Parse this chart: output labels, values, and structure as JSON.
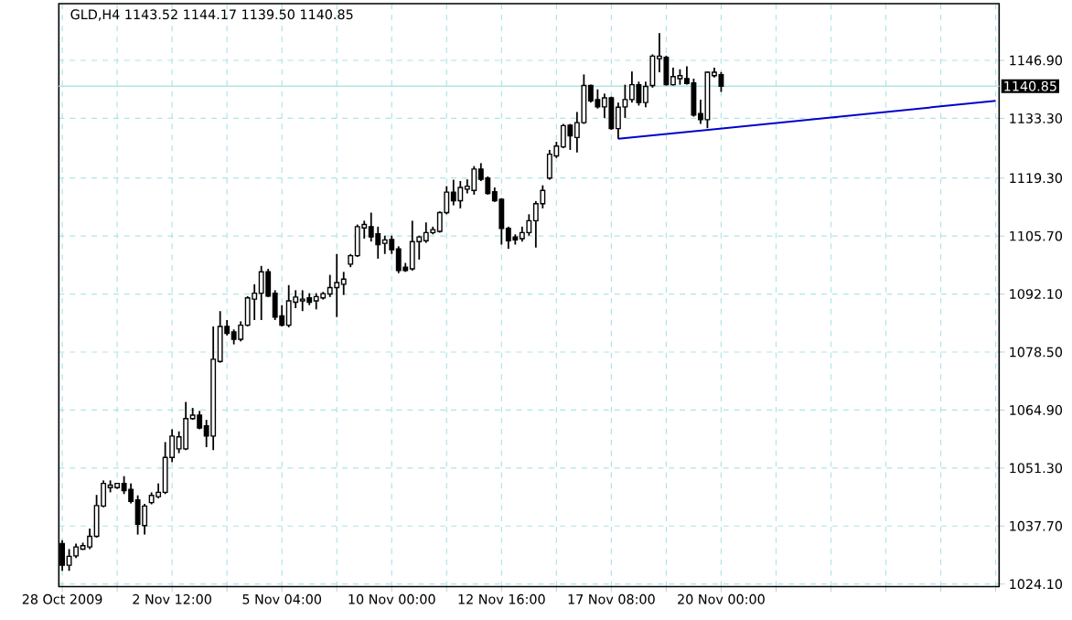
{
  "chart_data": {
    "type": "candlestick",
    "title": "GLD,H4  1143.52 1144.17 1139.50 1140.85",
    "categories": [
      "28 Oct 2009",
      null,
      null,
      null,
      null,
      null,
      null,
      null,
      null,
      null,
      null,
      null,
      null,
      null,
      null,
      null,
      "2 Nov 12:00",
      null,
      null,
      null,
      null,
      null,
      null,
      null,
      null,
      null,
      null,
      null,
      null,
      null,
      null,
      null,
      "5 Nov 04:00",
      null,
      null,
      null,
      null,
      null,
      null,
      null,
      null,
      null,
      null,
      null,
      null,
      null,
      null,
      null,
      "10 Nov 00:00",
      null,
      null,
      null,
      null,
      null,
      null,
      null,
      null,
      null,
      null,
      null,
      null,
      null,
      null,
      null,
      "12 Nov 16:00",
      null,
      null,
      null,
      null,
      null,
      null,
      null,
      null,
      null,
      null,
      null,
      null,
      null,
      null,
      null,
      "17 Nov 08:00",
      null,
      null,
      null,
      null,
      null,
      null,
      null,
      null,
      null,
      null,
      null,
      null,
      null,
      null,
      null,
      "20 Nov 00:00",
      null,
      null,
      null,
      null,
      null,
      null,
      null,
      null,
      null,
      null,
      null,
      null,
      null,
      null,
      null,
      null,
      null,
      null,
      null,
      null,
      null,
      null,
      null,
      null,
      null,
      null,
      null,
      null,
      null,
      null,
      null,
      null,
      null,
      null,
      null,
      null,
      null,
      null,
      null,
      null
    ],
    "ohlc": [
      [
        1033.6,
        1034.4,
        1027.2,
        1028.5
      ],
      [
        1028.5,
        1032.3,
        1027.2,
        1030.6
      ],
      [
        1030.7,
        1033.6,
        1030.2,
        1032.8
      ],
      [
        1032.3,
        1033.8,
        1032.1,
        1033.1
      ],
      [
        1032.8,
        1037.1,
        1032.3,
        1035.3
      ],
      [
        1035.3,
        1045.0,
        1035.0,
        1042.5
      ],
      [
        1042.4,
        1048.4,
        1042.1,
        1047.7
      ],
      [
        1046.7,
        1048.4,
        1045.6,
        1047.3
      ],
      [
        1046.7,
        1047.7,
        1046.4,
        1047.7
      ],
      [
        1047.7,
        1049.4,
        1045.2,
        1046.0
      ],
      [
        1046.3,
        1047.7,
        1043.0,
        1043.5
      ],
      [
        1043.8,
        1044.9,
        1035.7,
        1038.1
      ],
      [
        1037.8,
        1042.9,
        1035.7,
        1042.4
      ],
      [
        1043.2,
        1045.6,
        1042.8,
        1044.9
      ],
      [
        1044.6,
        1047.7,
        1044.2,
        1045.6
      ],
      [
        1045.6,
        1057.4,
        1045.2,
        1053.8
      ],
      [
        1053.8,
        1060.4,
        1052.7,
        1058.8
      ],
      [
        1055.8,
        1059.9,
        1054.8,
        1058.6
      ],
      [
        1055.8,
        1066.8,
        1055.5,
        1062.9
      ],
      [
        1062.9,
        1065.4,
        1062.6,
        1063.7
      ],
      [
        1063.7,
        1064.7,
        1060.4,
        1060.7
      ],
      [
        1061.2,
        1062.6,
        1056.2,
        1058.8
      ],
      [
        1058.8,
        1084.5,
        1055.5,
        1076.8
      ],
      [
        1076.3,
        1088.1,
        1076.0,
        1084.5
      ],
      [
        1084.5,
        1086.0,
        1082.4,
        1082.9
      ],
      [
        1083.2,
        1083.8,
        1080.3,
        1081.5
      ],
      [
        1081.5,
        1085.7,
        1081.0,
        1084.8
      ],
      [
        1084.8,
        1091.6,
        1084.5,
        1091.2
      ],
      [
        1090.9,
        1094.4,
        1086.0,
        1092.3
      ],
      [
        1092.3,
        1098.7,
        1086.0,
        1097.3
      ],
      [
        1097.3,
        1098.0,
        1091.4,
        1091.6
      ],
      [
        1092.3,
        1093.0,
        1086.0,
        1086.7
      ],
      [
        1087.0,
        1089.5,
        1084.5,
        1084.8
      ],
      [
        1084.8,
        1094.2,
        1084.3,
        1090.5
      ],
      [
        1090.2,
        1093.0,
        1088.8,
        1091.4
      ],
      [
        1090.5,
        1093.0,
        1088.1,
        1090.9
      ],
      [
        1091.2,
        1092.3,
        1089.5,
        1090.2
      ],
      [
        1090.5,
        1092.3,
        1088.5,
        1091.5
      ],
      [
        1091.2,
        1092.6,
        1090.8,
        1092.2
      ],
      [
        1092.1,
        1096.6,
        1091.4,
        1093.6
      ],
      [
        1093.6,
        1101.5,
        1086.7,
        1094.8
      ],
      [
        1094.4,
        1097.3,
        1091.9,
        1095.6
      ],
      [
        1099.1,
        1101.5,
        1098.4,
        1101.1
      ],
      [
        1101.1,
        1108.4,
        1100.8,
        1107.9
      ],
      [
        1107.6,
        1109.3,
        1105.1,
        1108.4
      ],
      [
        1107.9,
        1111.2,
        1104.4,
        1105.5
      ],
      [
        1106.2,
        1107.9,
        1100.4,
        1103.7
      ],
      [
        1104.0,
        1105.8,
        1101.5,
        1104.8
      ],
      [
        1104.9,
        1105.8,
        1101.5,
        1102.5
      ],
      [
        1102.7,
        1103.3,
        1097.0,
        1097.6
      ],
      [
        1098.4,
        1099.4,
        1097.3,
        1097.6
      ],
      [
        1098.0,
        1109.3,
        1097.6,
        1104.4
      ],
      [
        1104.4,
        1105.8,
        1100.2,
        1105.5
      ],
      [
        1104.6,
        1108.9,
        1104.1,
        1106.5
      ],
      [
        1106.5,
        1107.9,
        1106.1,
        1107.2
      ],
      [
        1106.8,
        1111.5,
        1106.5,
        1111.2
      ],
      [
        1111.2,
        1117.4,
        1110.8,
        1116.0
      ],
      [
        1116.0,
        1118.9,
        1112.9,
        1114.0
      ],
      [
        1114.0,
        1118.6,
        1112.2,
        1117.1
      ],
      [
        1116.7,
        1119.0,
        1115.7,
        1117.4
      ],
      [
        1116.4,
        1122.1,
        1115.4,
        1121.4
      ],
      [
        1121.4,
        1122.8,
        1118.6,
        1119.0
      ],
      [
        1119.3,
        1119.7,
        1115.4,
        1115.7
      ],
      [
        1116.1,
        1117.1,
        1113.7,
        1114.0
      ],
      [
        1114.3,
        1114.6,
        1103.7,
        1107.5
      ],
      [
        1107.5,
        1107.9,
        1102.7,
        1104.6
      ],
      [
        1105.5,
        1106.1,
        1103.7,
        1104.8
      ],
      [
        1105.1,
        1107.9,
        1104.4,
        1106.5
      ],
      [
        1106.5,
        1110.8,
        1105.8,
        1109.3
      ],
      [
        1109.3,
        1113.9,
        1103.0,
        1113.3
      ],
      [
        1113.3,
        1117.6,
        1112.2,
        1116.4
      ],
      [
        1119.3,
        1125.9,
        1118.9,
        1124.9
      ],
      [
        1124.5,
        1127.8,
        1124.0,
        1126.8
      ],
      [
        1126.6,
        1132.0,
        1126.3,
        1131.6
      ],
      [
        1131.7,
        1132.0,
        1125.9,
        1129.2
      ],
      [
        1128.8,
        1134.8,
        1125.3,
        1132.3
      ],
      [
        1132.3,
        1143.6,
        1132.0,
        1141.0
      ],
      [
        1141.0,
        1141.2,
        1137.0,
        1137.4
      ],
      [
        1137.7,
        1140.1,
        1135.6,
        1136.0
      ],
      [
        1136.0,
        1139.1,
        1133.4,
        1138.1
      ],
      [
        1138.1,
        1138.4,
        1130.6,
        1130.9
      ],
      [
        1130.9,
        1137.0,
        1128.5,
        1135.9
      ],
      [
        1136.0,
        1141.2,
        1133.4,
        1137.7
      ],
      [
        1137.7,
        1144.3,
        1137.0,
        1141.2
      ],
      [
        1141.2,
        1141.9,
        1136.3,
        1137.0
      ],
      [
        1137.0,
        1141.9,
        1135.9,
        1140.8
      ],
      [
        1141.0,
        1148.3,
        1140.5,
        1147.9
      ],
      [
        1147.3,
        1153.3,
        1144.1,
        1147.9
      ],
      [
        1147.6,
        1148.0,
        1141.0,
        1141.2
      ],
      [
        1141.2,
        1145.2,
        1141.0,
        1143.1
      ],
      [
        1142.6,
        1144.8,
        1141.2,
        1143.3
      ],
      [
        1142.6,
        1145.5,
        1141.2,
        1141.5
      ],
      [
        1141.6,
        1142.6,
        1133.7,
        1134.1
      ],
      [
        1134.4,
        1137.7,
        1132.0,
        1133.0
      ],
      [
        1133.0,
        1144.3,
        1131.0,
        1144.1
      ],
      [
        1143.3,
        1145.2,
        1142.9,
        1144.1
      ],
      [
        1143.52,
        1144.17,
        1139.5,
        1140.85
      ],
      null,
      null,
      null,
      null,
      null,
      null,
      null,
      null,
      null,
      null,
      null,
      null,
      null,
      null,
      null,
      null,
      null,
      null,
      null,
      null,
      null,
      null,
      null,
      null,
      null,
      null,
      null,
      null,
      null,
      null,
      null,
      null,
      null,
      null,
      null,
      null,
      null,
      null,
      null,
      null
    ],
    "color": "#000000",
    "series": [
      {
        "type": "line",
        "color": "#0000cc",
        "values": [
          null,
          null,
          null,
          null,
          null,
          null,
          null,
          null,
          null,
          null,
          null,
          null,
          null,
          null,
          null,
          null,
          null,
          null,
          null,
          null,
          null,
          null,
          null,
          null,
          null,
          null,
          null,
          null,
          null,
          null,
          null,
          null,
          null,
          null,
          null,
          null,
          null,
          null,
          null,
          null,
          null,
          null,
          null,
          null,
          null,
          null,
          null,
          null,
          null,
          null,
          null,
          null,
          null,
          null,
          null,
          null,
          null,
          null,
          null,
          null,
          null,
          null,
          null,
          null,
          null,
          null,
          null,
          null,
          null,
          null,
          null,
          null,
          null,
          null,
          null,
          null,
          null,
          null,
          null,
          null,
          null,
          1128.5,
          null,
          null,
          null,
          null,
          null,
          null,
          null,
          null,
          null,
          null,
          null,
          null,
          null,
          null,
          null,
          null,
          null,
          null,
          null,
          null,
          null,
          null,
          null,
          null,
          null,
          null,
          null,
          null,
          null,
          null,
          null,
          null,
          null,
          null,
          null,
          null,
          null,
          null,
          null,
          null,
          null,
          null,
          null,
          null,
          null,
          null,
          null,
          null,
          null,
          null,
          null,
          null,
          null,
          null,
          1137.4
        ]
      }
    ],
    "ylim": [
      1023.5,
      1160.2
    ],
    "yticks": [
      {
        "value": 1024.1,
        "label": "1024.10"
      },
      {
        "value": 1037.7,
        "label": "1037.70"
      },
      {
        "value": 1051.3,
        "label": "1051.30"
      },
      {
        "value": 1064.9,
        "label": "1064.90"
      },
      {
        "value": 1078.5,
        "label": "1078.50"
      },
      {
        "value": 1092.1,
        "label": "1092.10"
      },
      {
        "value": 1105.7,
        "label": "1105.70"
      },
      {
        "value": 1119.3,
        "label": "1119.30"
      },
      {
        "value": 1133.3,
        "label": "1133.30"
      },
      {
        "value": 1146.9,
        "label": "1146.90"
      }
    ],
    "grid": true,
    "ref_lines": [
      {
        "axis": "y",
        "value": 1140.85,
        "label": "1140.85",
        "color": "#b0e4e6"
      }
    ]
  }
}
